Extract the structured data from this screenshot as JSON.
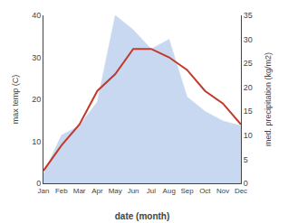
{
  "chart_data": {
    "type": "line",
    "xlabel": "date (month)",
    "ylabel": "max temp (C)",
    "y2label": "med. precipitation (kg/m2)",
    "categories": [
      "Jan",
      "Feb",
      "Mar",
      "Apr",
      "May",
      "Jun",
      "Jul",
      "Aug",
      "Sep",
      "Oct",
      "Nov",
      "Dec"
    ],
    "series": [
      {
        "type": "area",
        "axis": "y2",
        "color": "#c8d8f0",
        "values": [
          2,
          10,
          12,
          17,
          35,
          32,
          28,
          30,
          18,
          15,
          13,
          12
        ]
      },
      {
        "type": "line",
        "color": "#c0392b",
        "values": [
          3,
          9,
          14,
          22,
          26,
          32,
          32,
          30,
          27,
          22,
          19,
          14
        ]
      }
    ],
    "ylim": [
      0,
      40
    ],
    "yticks": [
      0,
      10,
      20,
      30,
      40
    ],
    "y2lim": [
      0,
      35
    ],
    "y2ticks": [
      0,
      5,
      10,
      15,
      20,
      25,
      30,
      35
    ],
    "grid": false
  }
}
